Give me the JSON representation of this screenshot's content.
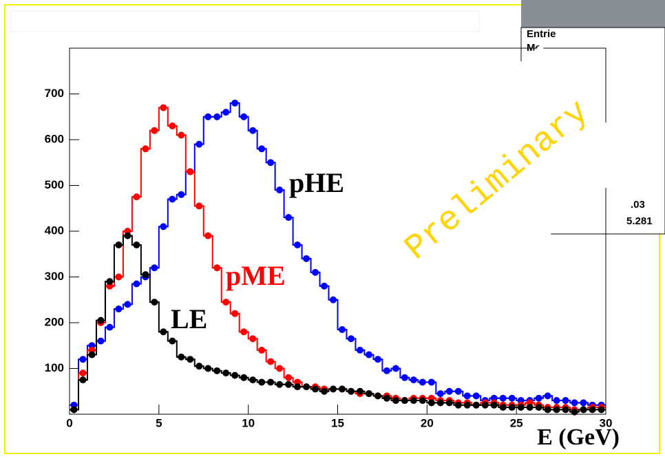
{
  "chart_data": {
    "type": "histogram",
    "xlabel": "E (GeV)",
    "bins": [
      0,
      0.5,
      1,
      1.5,
      2,
      2.5,
      3,
      3.5,
      4,
      4.5,
      5,
      5.5,
      6,
      6.5,
      7,
      7.5,
      8,
      8.5,
      9,
      9.5,
      10,
      10.5,
      11,
      11.5,
      12,
      12.5,
      13,
      13.5,
      14,
      14.5,
      15,
      15.5,
      16,
      16.5,
      17,
      17.5,
      18,
      18.5,
      19,
      19.5,
      20,
      20.5,
      21,
      21.5,
      22,
      22.5,
      23,
      23.5,
      24,
      24.5,
      25,
      25.5,
      26,
      26.5,
      27,
      27.5,
      28,
      28.5,
      29,
      29.5,
      30
    ],
    "series": [
      {
        "name": "pHE",
        "color": "#0000ff",
        "values": [
          20,
          120,
          150,
          160,
          190,
          230,
          240,
          285,
          300,
          320,
          410,
          470,
          480,
          530,
          590,
          650,
          650,
          660,
          680,
          650,
          620,
          580,
          550,
          490,
          430,
          370,
          340,
          310,
          280,
          250,
          185,
          165,
          140,
          130,
          120,
          95,
          100,
          80,
          75,
          70,
          70,
          45,
          50,
          50,
          40,
          40,
          30,
          35,
          35,
          35,
          30,
          30,
          35,
          40,
          30,
          30,
          25,
          25,
          20,
          20
        ]
      },
      {
        "name": "pME",
        "color": "#ff0000",
        "values": [
          10,
          90,
          140,
          200,
          280,
          300,
          400,
          475,
          580,
          620,
          670,
          630,
          610,
          530,
          455,
          390,
          320,
          245,
          220,
          180,
          165,
          140,
          115,
          100,
          80,
          70,
          60,
          60,
          55,
          55,
          55,
          50,
          45,
          45,
          40,
          40,
          35,
          30,
          35,
          35,
          35,
          30,
          30,
          25,
          25,
          20,
          25,
          25,
          20,
          20,
          20,
          25,
          20,
          15,
          15,
          15,
          10,
          10,
          15,
          15
        ]
      },
      {
        "name": "LE",
        "color": "#000000",
        "values": [
          10,
          75,
          130,
          205,
          290,
          370,
          390,
          370,
          305,
          245,
          180,
          160,
          125,
          120,
          105,
          100,
          95,
          90,
          85,
          80,
          75,
          70,
          70,
          65,
          65,
          60,
          60,
          55,
          50,
          55,
          55,
          50,
          50,
          45,
          40,
          35,
          30,
          30,
          30,
          30,
          25,
          25,
          25,
          20,
          20,
          20,
          20,
          20,
          15,
          15,
          15,
          15,
          15,
          10,
          10,
          10,
          5,
          10,
          10,
          10
        ]
      }
    ],
    "xlim": [
      0,
      30
    ],
    "xticks": [
      0,
      5,
      10,
      15,
      20,
      25,
      30
    ],
    "ylim": [
      0,
      800
    ],
    "yticks": [
      100,
      200,
      300,
      400,
      500,
      600,
      700
    ],
    "stats_box": [
      "Entrie",
      "Me",
      ".03",
      "5.281"
    ],
    "watermark": "Preliminary"
  }
}
